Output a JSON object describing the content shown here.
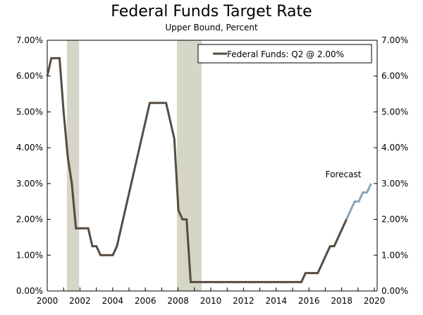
{
  "chart_data": {
    "type": "line",
    "title": "Federal Funds Target Rate",
    "subtitle": "Upper Bound, Percent",
    "xlabel": "",
    "ylabel": "",
    "xlim": [
      2000,
      2020
    ],
    "ylim": [
      0,
      7
    ],
    "x_ticks": [
      "2000",
      "2002",
      "2004",
      "2006",
      "2008",
      "2010",
      "2012",
      "2014",
      "2016",
      "2018",
      "2020"
    ],
    "y_ticks": [
      "0.00%",
      "1.00%",
      "2.00%",
      "3.00%",
      "4.00%",
      "5.00%",
      "6.00%",
      "7.00%"
    ],
    "legend": {
      "label": "Federal Funds: Q2 @ 2.00%",
      "placement": "top-right"
    },
    "annotation": "Forecast",
    "recessions": [
      [
        2001.2,
        2001.95
      ],
      [
        2007.93,
        2009.44
      ]
    ],
    "frequency": "quarterly",
    "start": 2000,
    "series": [
      {
        "name": "Federal Funds",
        "color": "#574b40",
        "values": [
          6.0,
          6.5,
          6.5,
          6.5,
          5.0,
          3.75,
          3.0,
          1.75,
          1.75,
          1.75,
          1.75,
          1.25,
          1.25,
          1.0,
          1.0,
          1.0,
          1.0,
          1.25,
          1.75,
          2.25,
          2.75,
          3.25,
          3.75,
          4.25,
          4.75,
          5.25,
          5.25,
          5.25,
          5.25,
          5.25,
          4.75,
          4.25,
          2.25,
          2.0,
          2.0,
          0.25,
          0.25,
          0.25,
          0.25,
          0.25,
          0.25,
          0.25,
          0.25,
          0.25,
          0.25,
          0.25,
          0.25,
          0.25,
          0.25,
          0.25,
          0.25,
          0.25,
          0.25,
          0.25,
          0.25,
          0.25,
          0.25,
          0.25,
          0.25,
          0.25,
          0.25,
          0.25,
          0.25,
          0.5,
          0.5,
          0.5,
          0.5,
          0.75,
          1.0,
          1.25,
          1.25,
          1.5,
          1.75,
          2.0
        ]
      },
      {
        "name": "Forecast",
        "color": "#8aa4b8",
        "start_index": 73,
        "values": [
          2.0,
          2.25,
          2.5,
          2.5,
          2.75,
          2.75,
          3.0
        ]
      }
    ],
    "recession_color": "#d5d5c8"
  }
}
